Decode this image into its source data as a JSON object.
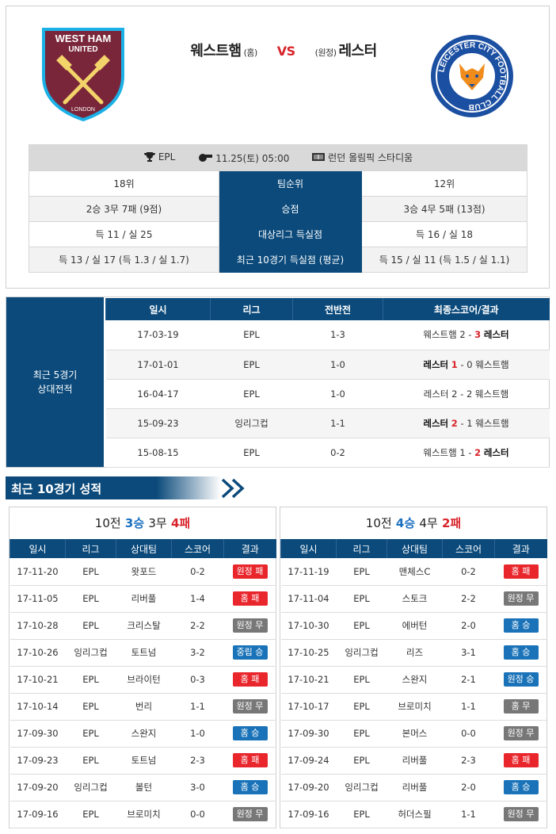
{
  "match": {
    "home_name": "웨스트햄",
    "home_tag": "(홈)",
    "vs": "VS",
    "away_tag": "(원정)",
    "away_name": "레스터",
    "home_logo_text": [
      "WEST HAM",
      "UNITED",
      "LONDON"
    ],
    "away_logo_text": "LEICESTER CITY FOOTBALL CLUB",
    "league": "EPL",
    "datetime": "11.25(토) 05:00",
    "stadium": "런던 올림픽 스타디움"
  },
  "stats": [
    {
      "home": "18위",
      "label": "팀순위",
      "away": "12위"
    },
    {
      "home": "2승 3무 7패 (9점)",
      "label": "승점",
      "away": "3승 4무 5패 (13점)"
    },
    {
      "home": "득 11 / 실 25",
      "label": "대상리그 득실점",
      "away": "득 16 / 실 18"
    },
    {
      "home": "득 13 / 실 17 (득 1.3 / 실 1.7)",
      "label": "최근 10경기 득실점 (평균)",
      "away": "득 15 / 실 11 (득 1.5 / 실 1.1)"
    }
  ],
  "h2h": {
    "side_label_1": "최근 5경기",
    "side_label_2": "상대전적",
    "headers": [
      "일시",
      "리그",
      "전반전",
      "최종스코어/결과"
    ],
    "rows": [
      {
        "date": "17-03-19",
        "league": "EPL",
        "half": "1-3",
        "t1": "웨스트햄",
        "s1": "2",
        "s2": "3",
        "t2": "레스터",
        "red": 2,
        "bold": 2
      },
      {
        "date": "17-01-01",
        "league": "EPL",
        "half": "1-0",
        "t1": "레스터",
        "s1": "1",
        "s2": "0",
        "t2": "웨스트햄",
        "red": 1,
        "bold": 1
      },
      {
        "date": "16-04-17",
        "league": "EPL",
        "half": "1-0",
        "t1": "레스터",
        "s1": "2",
        "s2": "2",
        "t2": "웨스트햄",
        "red": 0,
        "bold": 0
      },
      {
        "date": "15-09-23",
        "league": "잉리그컵",
        "half": "1-1",
        "t1": "레스터",
        "s1": "2",
        "s2": "1",
        "t2": "웨스트햄",
        "red": 1,
        "bold": 1
      },
      {
        "date": "15-08-15",
        "league": "EPL",
        "half": "0-2",
        "t1": "웨스트햄",
        "s1": "1",
        "s2": "2",
        "t2": "레스터",
        "red": 2,
        "bold": 2
      }
    ]
  },
  "recent_title": "최근 10경기 성적",
  "recent_headers": [
    "일시",
    "리그",
    "상대팀",
    "스코어",
    "결과"
  ],
  "home_recent": {
    "summary": {
      "games": "10전",
      "w": "3승",
      "d": "3무",
      "l": "4패"
    },
    "rows": [
      {
        "date": "17-11-20",
        "league": "EPL",
        "opp": "왓포드",
        "score": "0-2",
        "result": "원정 패",
        "kind": "lose"
      },
      {
        "date": "17-11-05",
        "league": "EPL",
        "opp": "리버풀",
        "score": "1-4",
        "result": "홈 패",
        "kind": "lose"
      },
      {
        "date": "17-10-28",
        "league": "EPL",
        "opp": "크리스탈",
        "score": "2-2",
        "result": "원정 무",
        "kind": "draw"
      },
      {
        "date": "17-10-26",
        "league": "잉리그컵",
        "opp": "토트넘",
        "score": "3-2",
        "result": "중립 승",
        "kind": "winb"
      },
      {
        "date": "17-10-21",
        "league": "EPL",
        "opp": "브라이턴",
        "score": "0-3",
        "result": "홈 패",
        "kind": "lose"
      },
      {
        "date": "17-10-14",
        "league": "EPL",
        "opp": "번리",
        "score": "1-1",
        "result": "원정 무",
        "kind": "draw"
      },
      {
        "date": "17-09-30",
        "league": "EPL",
        "opp": "스완지",
        "score": "1-0",
        "result": "홈 승",
        "kind": "winb"
      },
      {
        "date": "17-09-23",
        "league": "EPL",
        "opp": "토트넘",
        "score": "2-3",
        "result": "홈 패",
        "kind": "lose"
      },
      {
        "date": "17-09-20",
        "league": "잉리그컵",
        "opp": "볼턴",
        "score": "3-0",
        "result": "홈 승",
        "kind": "winb"
      },
      {
        "date": "17-09-16",
        "league": "EPL",
        "opp": "브로미치",
        "score": "0-0",
        "result": "원정 무",
        "kind": "draw"
      }
    ]
  },
  "away_recent": {
    "summary": {
      "games": "10전",
      "w": "4승",
      "d": "4무",
      "l": "2패"
    },
    "rows": [
      {
        "date": "17-11-19",
        "league": "EPL",
        "opp": "맨체스C",
        "score": "0-2",
        "result": "홈 패",
        "kind": "lose"
      },
      {
        "date": "17-11-04",
        "league": "EPL",
        "opp": "스토크",
        "score": "2-2",
        "result": "원정 무",
        "kind": "draw"
      },
      {
        "date": "17-10-30",
        "league": "EPL",
        "opp": "에버턴",
        "score": "2-0",
        "result": "홈 승",
        "kind": "winb"
      },
      {
        "date": "17-10-25",
        "league": "잉리그컵",
        "opp": "리즈",
        "score": "3-1",
        "result": "홈 승",
        "kind": "winb"
      },
      {
        "date": "17-10-21",
        "league": "EPL",
        "opp": "스완지",
        "score": "2-1",
        "result": "원정 승",
        "kind": "winb"
      },
      {
        "date": "17-10-17",
        "league": "EPL",
        "opp": "브로미치",
        "score": "1-1",
        "result": "홈 무",
        "kind": "draw"
      },
      {
        "date": "17-09-30",
        "league": "EPL",
        "opp": "본머스",
        "score": "0-0",
        "result": "원정 무",
        "kind": "draw"
      },
      {
        "date": "17-09-24",
        "league": "EPL",
        "opp": "리버풀",
        "score": "2-3",
        "result": "홈 패",
        "kind": "lose"
      },
      {
        "date": "17-09-20",
        "league": "잉리그컵",
        "opp": "리버풀",
        "score": "2-0",
        "result": "홈 승",
        "kind": "winb"
      },
      {
        "date": "17-09-16",
        "league": "EPL",
        "opp": "허더스필",
        "score": "1-1",
        "result": "원정 무",
        "kind": "draw"
      }
    ]
  },
  "colors": {
    "navy": "#0b4a7b",
    "red": "#e8262c",
    "blue": "#1a73b8",
    "gray": "#777777"
  }
}
